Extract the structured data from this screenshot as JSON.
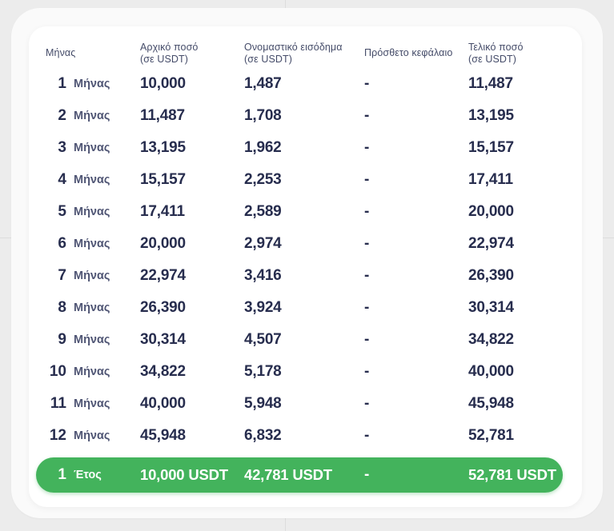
{
  "colors": {
    "accent_green": "#43b35c",
    "text_dark": "#272d4e",
    "text_muted": "#4f5574",
    "page_background": "#ececec",
    "card_background": "#ffffff"
  },
  "table": {
    "headers": {
      "month": "Μήνας",
      "initial_l1": "Αρχικό ποσό",
      "initial_l2": "(σε USDT)",
      "income_l1": "Ονομαστικό εισόδημα",
      "income_l2": "(σε USDT)",
      "extra": "Πρόσθετο κεφάλαιο",
      "final_l1": "Τελικό ποσό",
      "final_l2": "(σε USDT)"
    },
    "rows": [
      {
        "num": "1",
        "label": "Μήνας",
        "initial": "10,000",
        "income": "1,487",
        "extra": "-",
        "final": "11,487"
      },
      {
        "num": "2",
        "label": "Μήνας",
        "initial": "11,487",
        "income": "1,708",
        "extra": "-",
        "final": "13,195"
      },
      {
        "num": "3",
        "label": "Μήνας",
        "initial": "13,195",
        "income": "1,962",
        "extra": "-",
        "final": "15,157"
      },
      {
        "num": "4",
        "label": "Μήνας",
        "initial": "15,157",
        "income": "2,253",
        "extra": "-",
        "final": "17,411"
      },
      {
        "num": "5",
        "label": "Μήνας",
        "initial": "17,411",
        "income": "2,589",
        "extra": "-",
        "final": "20,000"
      },
      {
        "num": "6",
        "label": "Μήνας",
        "initial": "20,000",
        "income": "2,974",
        "extra": "-",
        "final": "22,974"
      },
      {
        "num": "7",
        "label": "Μήνας",
        "initial": "22,974",
        "income": "3,416",
        "extra": "-",
        "final": "26,390"
      },
      {
        "num": "8",
        "label": "Μήνας",
        "initial": "26,390",
        "income": "3,924",
        "extra": "-",
        "final": "30,314"
      },
      {
        "num": "9",
        "label": "Μήνας",
        "initial": "30,314",
        "income": "4,507",
        "extra": "-",
        "final": "34,822"
      },
      {
        "num": "10",
        "label": "Μήνας",
        "initial": "34,822",
        "income": "5,178",
        "extra": "-",
        "final": "40,000"
      },
      {
        "num": "11",
        "label": "Μήνας",
        "initial": "40,000",
        "income": "5,948",
        "extra": "-",
        "final": "45,948"
      },
      {
        "num": "12",
        "label": "Μήνας",
        "initial": "45,948",
        "income": "6,832",
        "extra": "-",
        "final": "52,781"
      }
    ],
    "footer": {
      "num": "1",
      "label": "Έτος",
      "initial": "10,000 USDT",
      "income": "42,781 USDT",
      "extra": "-",
      "final": "52,781 USDT"
    }
  }
}
